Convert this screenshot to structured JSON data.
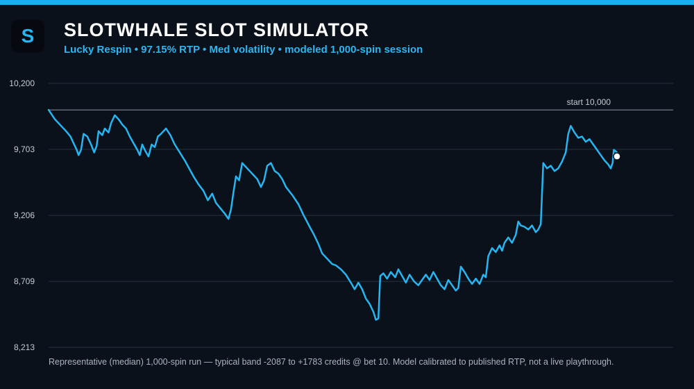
{
  "header": {
    "logo_letter": "S",
    "title": "SLOTWHALE SLOT SIMULATOR",
    "subtitle": "Lucky Respin  •  97.15% RTP  •  Med volatility  •  modeled 1,000-spin session"
  },
  "footnote": "Representative (median) 1,000-spin run — typical band -2087 to +1783 credits @ bet 10. Model calibrated to published RTP, not a live playthrough.",
  "colors": {
    "accent": "#12b3f0",
    "line": "#26b6f2",
    "background": "#0b111a",
    "grid": "#263241",
    "reference": "#8b95a2",
    "end_marker": "#ffffff"
  },
  "chart_data": {
    "type": "line",
    "title": "SLOTWHALE SLOT SIMULATOR",
    "xlabel": "",
    "ylabel": "",
    "xlim": [
      0,
      1000
    ],
    "ylim": [
      8213,
      10200
    ],
    "y_ticks": [
      10200,
      9703,
      9206,
      8709,
      8213
    ],
    "y_tick_labels": [
      "10,200",
      "9,703",
      "9,206",
      "8,709",
      "8,213"
    ],
    "grid": true,
    "reference_line": {
      "value": 10000,
      "label": "start 10,000"
    },
    "series": [
      {
        "points": [
          [
            0,
            10000
          ],
          [
            10,
            9930
          ],
          [
            20,
            9880
          ],
          [
            28,
            9840
          ],
          [
            35,
            9800
          ],
          [
            40,
            9750
          ],
          [
            45,
            9700
          ],
          [
            48,
            9660
          ],
          [
            52,
            9700
          ],
          [
            56,
            9820
          ],
          [
            62,
            9800
          ],
          [
            68,
            9740
          ],
          [
            73,
            9680
          ],
          [
            77,
            9730
          ],
          [
            80,
            9840
          ],
          [
            86,
            9810
          ],
          [
            90,
            9860
          ],
          [
            96,
            9830
          ],
          [
            100,
            9900
          ],
          [
            106,
            9960
          ],
          [
            112,
            9930
          ],
          [
            118,
            9890
          ],
          [
            124,
            9860
          ],
          [
            130,
            9800
          ],
          [
            136,
            9750
          ],
          [
            142,
            9700
          ],
          [
            146,
            9660
          ],
          [
            150,
            9740
          ],
          [
            155,
            9690
          ],
          [
            160,
            9650
          ],
          [
            165,
            9740
          ],
          [
            170,
            9720
          ],
          [
            175,
            9800
          ],
          [
            180,
            9820
          ],
          [
            188,
            9860
          ],
          [
            195,
            9810
          ],
          [
            202,
            9740
          ],
          [
            210,
            9680
          ],
          [
            218,
            9620
          ],
          [
            225,
            9560
          ],
          [
            232,
            9500
          ],
          [
            240,
            9440
          ],
          [
            248,
            9390
          ],
          [
            255,
            9320
          ],
          [
            262,
            9370
          ],
          [
            268,
            9300
          ],
          [
            275,
            9260
          ],
          [
            282,
            9220
          ],
          [
            288,
            9180
          ],
          [
            292,
            9250
          ],
          [
            296,
            9380
          ],
          [
            300,
            9500
          ],
          [
            305,
            9470
          ],
          [
            310,
            9600
          ],
          [
            316,
            9570
          ],
          [
            322,
            9540
          ],
          [
            328,
            9510
          ],
          [
            334,
            9480
          ],
          [
            340,
            9420
          ],
          [
            345,
            9470
          ],
          [
            350,
            9580
          ],
          [
            356,
            9600
          ],
          [
            362,
            9540
          ],
          [
            368,
            9520
          ],
          [
            374,
            9480
          ],
          [
            380,
            9420
          ],
          [
            390,
            9360
          ],
          [
            400,
            9290
          ],
          [
            408,
            9210
          ],
          [
            418,
            9120
          ],
          [
            425,
            9060
          ],
          [
            432,
            8990
          ],
          [
            438,
            8920
          ],
          [
            446,
            8880
          ],
          [
            454,
            8840
          ],
          [
            460,
            8830
          ],
          [
            468,
            8800
          ],
          [
            476,
            8760
          ],
          [
            484,
            8700
          ],
          [
            490,
            8650
          ],
          [
            496,
            8700
          ],
          [
            502,
            8650
          ],
          [
            508,
            8580
          ],
          [
            514,
            8540
          ],
          [
            520,
            8480
          ],
          [
            524,
            8420
          ],
          [
            528,
            8430
          ],
          [
            531,
            8750
          ],
          [
            536,
            8770
          ],
          [
            542,
            8730
          ],
          [
            548,
            8780
          ],
          [
            555,
            8740
          ],
          [
            560,
            8800
          ],
          [
            566,
            8750
          ],
          [
            572,
            8700
          ],
          [
            578,
            8760
          ],
          [
            585,
            8710
          ],
          [
            592,
            8680
          ],
          [
            598,
            8720
          ],
          [
            604,
            8760
          ],
          [
            610,
            8720
          ],
          [
            616,
            8780
          ],
          [
            622,
            8730
          ],
          [
            628,
            8680
          ],
          [
            634,
            8650
          ],
          [
            640,
            8720
          ],
          [
            646,
            8680
          ],
          [
            652,
            8640
          ],
          [
            656,
            8660
          ],
          [
            660,
            8820
          ],
          [
            666,
            8780
          ],
          [
            672,
            8730
          ],
          [
            678,
            8690
          ],
          [
            684,
            8730
          ],
          [
            690,
            8690
          ],
          [
            696,
            8760
          ],
          [
            700,
            8740
          ],
          [
            704,
            8900
          ],
          [
            710,
            8960
          ],
          [
            716,
            8930
          ],
          [
            722,
            8980
          ],
          [
            726,
            8940
          ],
          [
            730,
            9000
          ],
          [
            736,
            9040
          ],
          [
            742,
            9000
          ],
          [
            748,
            9060
          ],
          [
            752,
            9160
          ],
          [
            756,
            9130
          ],
          [
            762,
            9120
          ],
          [
            768,
            9100
          ],
          [
            774,
            9130
          ],
          [
            780,
            9080
          ],
          [
            784,
            9100
          ],
          [
            788,
            9140
          ],
          [
            792,
            9600
          ],
          [
            798,
            9560
          ],
          [
            804,
            9580
          ],
          [
            810,
            9540
          ],
          [
            816,
            9560
          ],
          [
            822,
            9610
          ],
          [
            828,
            9680
          ],
          [
            832,
            9820
          ],
          [
            836,
            9880
          ],
          [
            842,
            9830
          ],
          [
            848,
            9790
          ],
          [
            854,
            9800
          ],
          [
            860,
            9760
          ],
          [
            866,
            9780
          ],
          [
            872,
            9740
          ],
          [
            878,
            9700
          ],
          [
            884,
            9660
          ],
          [
            890,
            9620
          ],
          [
            896,
            9590
          ],
          [
            900,
            9560
          ],
          [
            903,
            9600
          ],
          [
            905,
            9700
          ],
          [
            910,
            9680
          ]
        ],
        "end_marker_value": 9650
      }
    ]
  }
}
